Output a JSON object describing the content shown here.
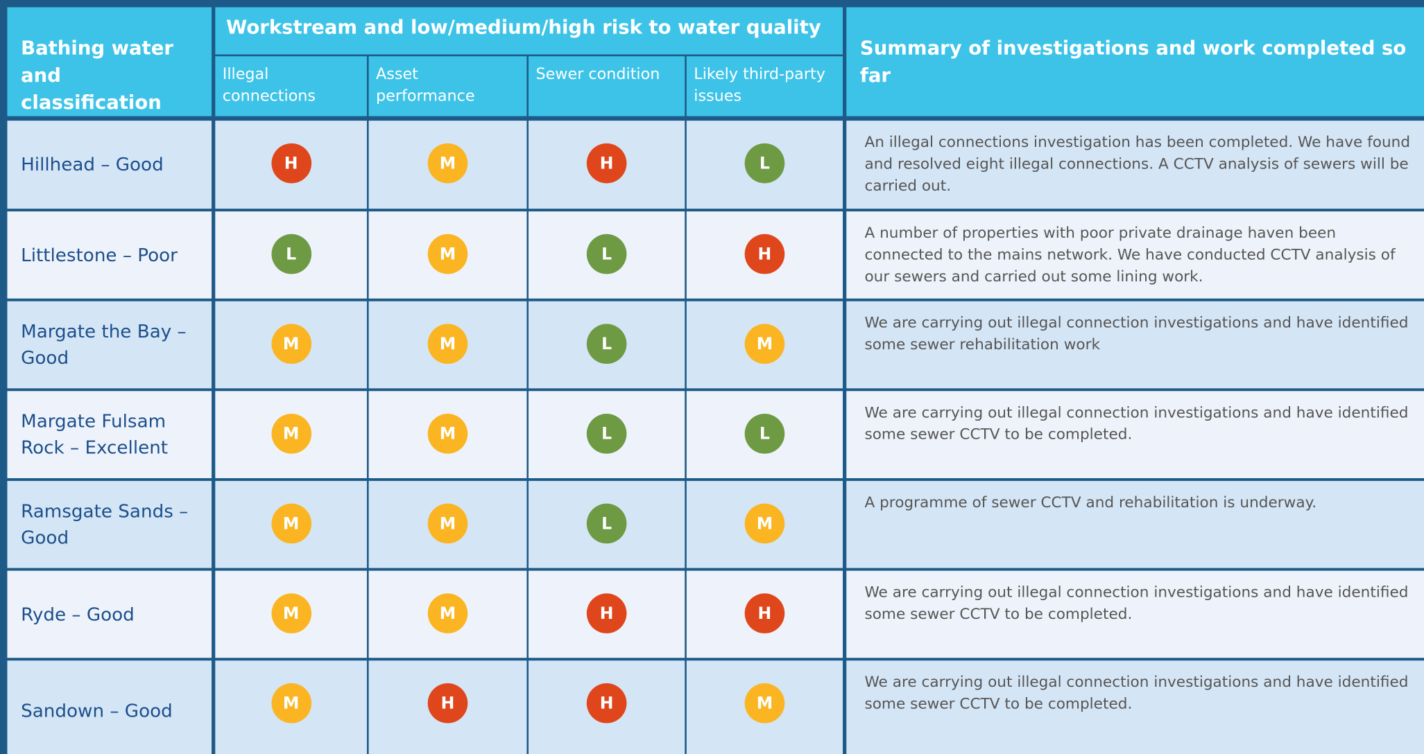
{
  "header": {
    "bathing": "Bathing water and classification",
    "workstream": "Workstream and low/medium/high risk to water quality",
    "columns": [
      "Illegal connections",
      "Asset performance",
      "Sewer condition",
      "Likely third-party issues"
    ],
    "summary": "Summary of investigations and work completed so far"
  },
  "badge_colors": {
    "H": "#e0461c",
    "M": "#fbb522",
    "L": "#6e9a44"
  },
  "rows": [
    {
      "name": "Hillhead – Good",
      "risks": [
        "H",
        "M",
        "H",
        "L"
      ],
      "summary": "An illegal connections investigation has been completed. We have found and resolved eight illegal connections. A CCTV analysis of sewers will be carried out."
    },
    {
      "name": "Littlestone – Poor",
      "risks": [
        "L",
        "M",
        "L",
        "H"
      ],
      "summary": "A number of properties with poor private drainage haven been connected to the mains network. We have conducted CCTV analysis of our sewers and carried out some lining work."
    },
    {
      "name": "Margate the Bay – Good",
      "risks": [
        "M",
        "M",
        "L",
        "M"
      ],
      "summary": "We are carrying out illegal connection investigations and have identified some sewer rehabilitation work"
    },
    {
      "name": "Margate Fulsam Rock – Excellent",
      "risks": [
        "M",
        "M",
        "L",
        "L"
      ],
      "summary": "We are carrying out illegal connection investigations and have identified some sewer CCTV to be completed."
    },
    {
      "name": "Ramsgate Sands – Good",
      "risks": [
        "M",
        "M",
        "L",
        "M"
      ],
      "summary": "A programme of sewer CCTV and rehabilitation is underway."
    },
    {
      "name": "Ryde – Good",
      "risks": [
        "M",
        "M",
        "H",
        "H"
      ],
      "summary": "We are carrying out illegal connection investigations and have identified some sewer CCTV to be completed."
    },
    {
      "name": "Sandown – Good",
      "risks": [
        "M",
        "H",
        "H",
        "M"
      ],
      "summary": "We are carrying out illegal connection investigations and have identified some sewer CCTV to be completed."
    }
  ]
}
